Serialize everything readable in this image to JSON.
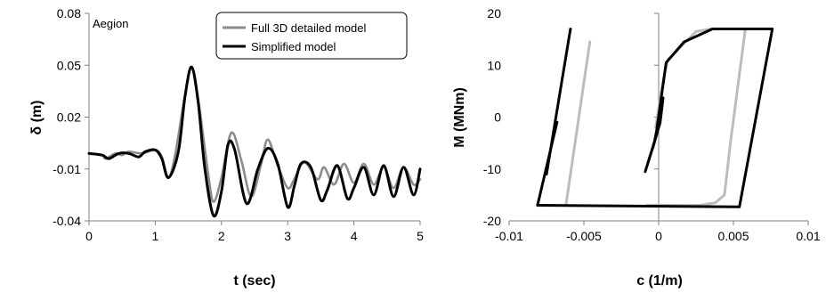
{
  "chart_data": [
    {
      "type": "line",
      "annotation": "Aegion",
      "xlabel": "t (sec)",
      "ylabel": "δ (m)",
      "xlim": [
        0,
        5
      ],
      "ylim": [
        -0.04,
        0.08
      ],
      "xticks": [
        0,
        1,
        2,
        3,
        4,
        5
      ],
      "yticks": [
        -0.04,
        -0.01,
        0.02,
        0.05,
        0.08
      ],
      "ytick_labels": [
        "-0.04",
        "-0.01",
        "0.02",
        "0.05",
        "0.08"
      ],
      "legend_position": "top-right",
      "series": [
        {
          "name": "Full 3D detailed model",
          "color": "#8c8c8c",
          "x": [
            0,
            0.2,
            0.25,
            0.4,
            0.5,
            0.6,
            0.8,
            1.0,
            1.1,
            1.2,
            1.3,
            1.45,
            1.55,
            1.65,
            1.8,
            1.88,
            2.0,
            2.15,
            2.3,
            2.45,
            2.6,
            2.7,
            2.85,
            3.0,
            3.1,
            3.25,
            3.45,
            3.55,
            3.7,
            3.85,
            4.0,
            4.15,
            4.3,
            4.45,
            4.6,
            4.75,
            4.9,
            5.0
          ],
          "values": [
            -0.001,
            -0.002,
            -0.004,
            -0.001,
            -0.002,
            0.0,
            -0.001,
            0.001,
            -0.003,
            -0.015,
            -0.002,
            0.033,
            0.049,
            0.03,
            -0.013,
            -0.029,
            -0.015,
            0.011,
            -0.005,
            -0.026,
            -0.007,
            0.007,
            -0.008,
            -0.021,
            -0.016,
            -0.006,
            -0.016,
            -0.009,
            -0.019,
            -0.007,
            -0.018,
            -0.007,
            -0.019,
            -0.009,
            -0.021,
            -0.009,
            -0.019,
            -0.016
          ]
        },
        {
          "name": "Simplified model",
          "color": "#000000",
          "x": [
            0,
            0.2,
            0.3,
            0.45,
            0.6,
            0.75,
            0.85,
            1.0,
            1.1,
            1.2,
            1.35,
            1.45,
            1.55,
            1.65,
            1.75,
            1.88,
            2.0,
            2.1,
            2.2,
            2.38,
            2.55,
            2.7,
            2.85,
            3.0,
            3.1,
            3.2,
            3.35,
            3.5,
            3.6,
            3.75,
            3.9,
            4.0,
            4.15,
            4.3,
            4.45,
            4.6,
            4.75,
            4.9,
            5.0
          ],
          "values": [
            -0.001,
            -0.002,
            -0.004,
            -0.001,
            -0.001,
            -0.003,
            0.0,
            0.001,
            -0.004,
            -0.015,
            0.0,
            0.032,
            0.049,
            0.028,
            -0.01,
            -0.037,
            -0.023,
            0.004,
            0.001,
            -0.03,
            -0.01,
            0.002,
            -0.007,
            -0.032,
            -0.02,
            -0.007,
            -0.009,
            -0.028,
            -0.022,
            -0.008,
            -0.027,
            -0.021,
            -0.009,
            -0.025,
            -0.008,
            -0.026,
            -0.009,
            -0.025,
            -0.01
          ]
        }
      ]
    },
    {
      "type": "line",
      "xlabel": "c (1/m)",
      "ylabel": "M (MNm)",
      "xlim": [
        -0.01,
        0.01
      ],
      "ylim": [
        -20,
        20
      ],
      "xticks": [
        -0.01,
        -0.005,
        0,
        0.005,
        0.01
      ],
      "xtick_labels": [
        "-0.01",
        "-0.005",
        "0",
        "0.005",
        "0.01"
      ],
      "yticks": [
        -20,
        -10,
        0,
        10,
        20
      ],
      "ytick_labels": [
        "-20",
        "-10",
        "0",
        "10",
        "20"
      ],
      "series": [
        {
          "color": "#bcbcbc",
          "segments": [
            {
              "x": [
                -0.0062,
                -0.0046
              ],
              "y": [
                -17,
                14.5
              ]
            },
            {
              "x": [
                -0.0002,
                0.0003,
                0.0006,
                0.0018,
                0.0025,
                0.0035,
                0.0058,
                0.0048,
                0.0046,
                0.0044,
                0.0038,
                0.0028,
                0.0003,
                -0.0005,
                -0.0008
              ],
              "y": [
                -2,
                7,
                11,
                14.5,
                16.5,
                17,
                17,
                -5,
                -10,
                -15,
                -16.5,
                -17,
                -17,
                -17,
                -17
              ]
            }
          ]
        },
        {
          "color": "#000000",
          "segments": [
            {
              "x": [
                -0.0075,
                -0.0059
              ],
              "y": [
                -11,
                17
              ]
            },
            {
              "x": [
                -0.0081,
                0.0054,
                0.0076,
                0.0036,
                0.0017,
                0.0005,
                -0.0002,
                -0.0009,
                -0.0003,
                0.0003,
                0.0001,
                -0.0004
              ],
              "y": [
                -17,
                -17.3,
                17,
                17,
                14.5,
                10.5,
                -4,
                -10.5,
                -5,
                3.7,
                -1,
                -6
              ]
            },
            {
              "x": [
                -0.0081,
                -0.0068
              ],
              "y": [
                -17,
                -1
              ]
            }
          ]
        }
      ]
    }
  ]
}
